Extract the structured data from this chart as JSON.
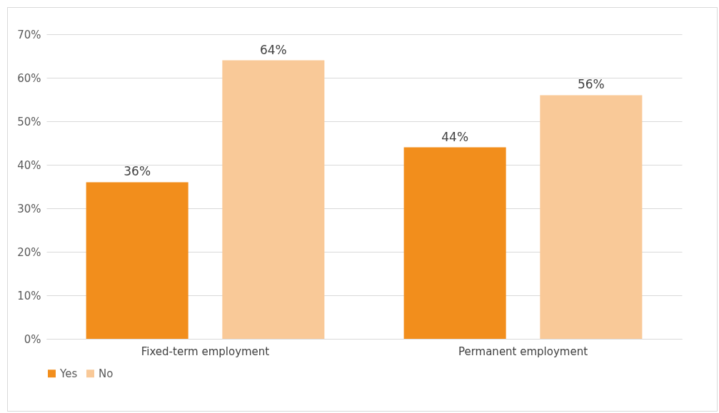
{
  "chart_data": {
    "type": "bar",
    "categories": [
      "Fixed-term employment",
      "Permanent employment"
    ],
    "series": [
      {
        "name": "Yes",
        "color": "#f28e1c",
        "values": [
          36,
          44
        ],
        "value_labels": [
          "36%",
          "44%"
        ]
      },
      {
        "name": "No",
        "color": "#f9c998",
        "values": [
          64,
          56
        ],
        "value_labels": [
          "64%",
          "56%"
        ]
      }
    ],
    "ylim": [
      0,
      70
    ],
    "yticks": [
      {
        "value": 0,
        "label": "0%"
      },
      {
        "value": 10,
        "label": "10%"
      },
      {
        "value": 20,
        "label": "20%"
      },
      {
        "value": 30,
        "label": "30%"
      },
      {
        "value": 40,
        "label": "40%"
      },
      {
        "value": 50,
        "label": "50%"
      },
      {
        "value": 60,
        "label": "60%"
      },
      {
        "value": 70,
        "label": "70%"
      }
    ],
    "grid": "y",
    "legend": "bottom"
  }
}
